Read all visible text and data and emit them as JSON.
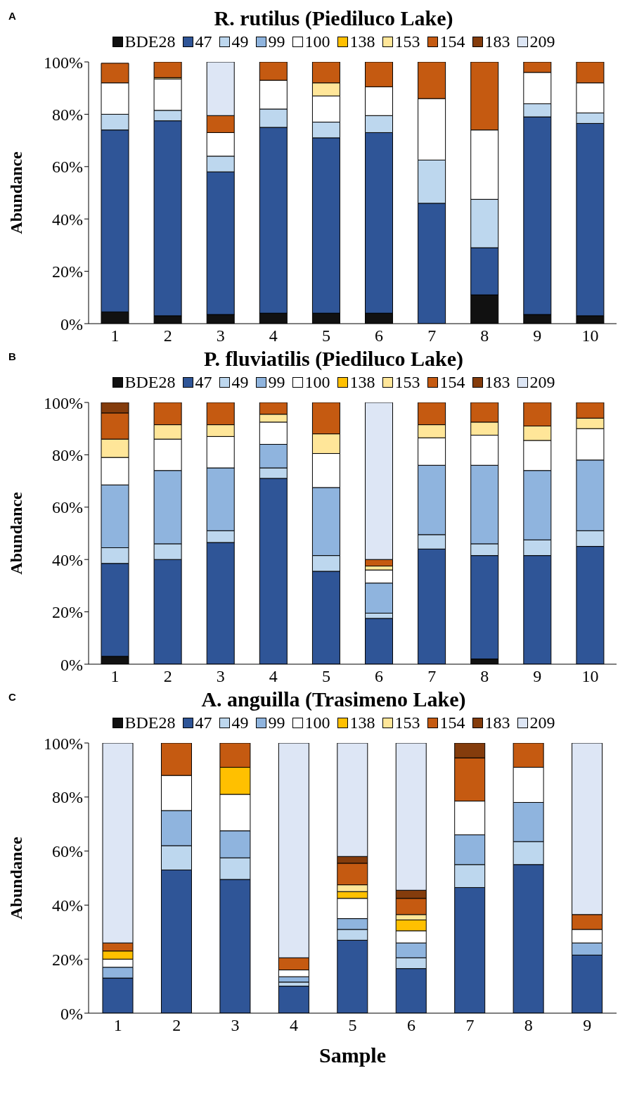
{
  "chart_data": [
    {
      "type": "bar",
      "stacked": true,
      "title": "R. rutilus (Piediluco Lake)",
      "ylabel": "Abundance",
      "annotations": [
        "A"
      ],
      "legend": "top",
      "categories": [
        "1",
        "2",
        "3",
        "4",
        "5",
        "6",
        "7",
        "8",
        "9",
        "10"
      ],
      "ylim": [
        0,
        100
      ],
      "yticks": [
        {
          "value": 0,
          "label": "0%"
        },
        {
          "value": 20,
          "label": "20%"
        },
        {
          "value": 40,
          "label": "40%"
        },
        {
          "value": 60,
          "label": "60%"
        },
        {
          "value": 80,
          "label": "80%"
        },
        {
          "value": 100,
          "label": "100%"
        }
      ],
      "series": [
        {
          "name": "BDE28",
          "color": "#111111",
          "values": [
            4.5,
            3,
            3.5,
            4,
            4,
            4,
            null,
            11,
            3.5,
            3
          ]
        },
        {
          "name": "47",
          "color": "#2f5597",
          "values": [
            69.5,
            74.5,
            54.5,
            71,
            67,
            69,
            46,
            18,
            75.5,
            73.5
          ]
        },
        {
          "name": "49",
          "color": "#bdd7ee",
          "values": [
            6,
            4,
            6,
            7,
            6,
            6.5,
            16.5,
            18.5,
            5,
            4
          ]
        },
        {
          "name": "99",
          "color": "#8fb4de",
          "values": [
            null,
            null,
            null,
            null,
            null,
            null,
            null,
            null,
            null,
            null
          ]
        },
        {
          "name": "100",
          "color": "#ffffff",
          "values": [
            12,
            12,
            9,
            11,
            10,
            11,
            23.5,
            26.5,
            12,
            11.5
          ]
        },
        {
          "name": "138",
          "color": "#ffc000",
          "values": [
            null,
            null,
            null,
            null,
            null,
            null,
            null,
            null,
            null,
            null
          ]
        },
        {
          "name": "153",
          "color": "#ffe699",
          "values": [
            null,
            0.5,
            null,
            null,
            5,
            null,
            null,
            null,
            null,
            null
          ]
        },
        {
          "name": "154",
          "color": "#c55a11",
          "values": [
            7.5,
            6,
            6.5,
            7,
            8,
            9.5,
            14,
            26,
            4,
            8
          ]
        },
        {
          "name": "183",
          "color": "#843c0c",
          "values": [
            null,
            null,
            null,
            null,
            null,
            null,
            null,
            null,
            null,
            null
          ]
        },
        {
          "name": "209",
          "color": "#dde6f5",
          "values": [
            null,
            null,
            20.5,
            null,
            null,
            null,
            null,
            null,
            null,
            null
          ]
        }
      ]
    },
    {
      "type": "bar",
      "stacked": true,
      "title": "P. fluviatilis (Piediluco Lake)",
      "ylabel": "Abundance",
      "annotations": [
        "B"
      ],
      "legend": "top",
      "categories": [
        "1",
        "2",
        "3",
        "4",
        "5",
        "6",
        "7",
        "8",
        "9",
        "10"
      ],
      "ylim": [
        0,
        100
      ],
      "yticks": [
        {
          "value": 0,
          "label": "0%"
        },
        {
          "value": 20,
          "label": "20%"
        },
        {
          "value": 40,
          "label": "40%"
        },
        {
          "value": 60,
          "label": "60%"
        },
        {
          "value": 80,
          "label": "80%"
        },
        {
          "value": 100,
          "label": "100%"
        }
      ],
      "series": [
        {
          "name": "BDE28",
          "color": "#111111",
          "values": [
            3,
            null,
            null,
            null,
            null,
            null,
            null,
            2,
            null,
            null
          ]
        },
        {
          "name": "47",
          "color": "#2f5597",
          "values": [
            35.5,
            40,
            46.5,
            71,
            35.5,
            17.5,
            44,
            39.5,
            41.5,
            45
          ]
        },
        {
          "name": "49",
          "color": "#bdd7ee",
          "values": [
            6,
            6,
            4.5,
            4,
            6,
            2,
            5.5,
            4.5,
            6,
            6
          ]
        },
        {
          "name": "99",
          "color": "#8fb4de",
          "values": [
            24,
            28,
            24,
            9,
            26,
            11.5,
            26.5,
            30,
            26.5,
            27
          ]
        },
        {
          "name": "100",
          "color": "#ffffff",
          "values": [
            10.5,
            12,
            12,
            8.5,
            13,
            5,
            10.5,
            11.5,
            11.5,
            12
          ]
        },
        {
          "name": "138",
          "color": "#ffc000",
          "values": [
            null,
            null,
            null,
            null,
            null,
            null,
            null,
            null,
            null,
            null
          ]
        },
        {
          "name": "153",
          "color": "#ffe699",
          "values": [
            7,
            5.5,
            4.5,
            3,
            7.5,
            1.5,
            5,
            5,
            5.5,
            4
          ]
        },
        {
          "name": "154",
          "color": "#c55a11",
          "values": [
            10,
            8.5,
            8.5,
            4.5,
            12,
            2.5,
            8.5,
            7.5,
            9,
            6
          ]
        },
        {
          "name": "183",
          "color": "#843c0c",
          "values": [
            4,
            null,
            null,
            null,
            null,
            null,
            null,
            null,
            null,
            null
          ]
        },
        {
          "name": "209",
          "color": "#dde6f5",
          "values": [
            null,
            null,
            null,
            null,
            null,
            60,
            null,
            null,
            null,
            null
          ]
        }
      ]
    },
    {
      "type": "bar",
      "stacked": true,
      "title": "A. anguilla (Trasimeno Lake)",
      "xlabel": "Sample",
      "ylabel": "Abundance",
      "annotations": [
        "C"
      ],
      "legend": "top",
      "categories": [
        "1",
        "2",
        "3",
        "4",
        "5",
        "6",
        "7",
        "8",
        "9"
      ],
      "ylim": [
        0,
        100
      ],
      "yticks": [
        {
          "value": 0,
          "label": "0%"
        },
        {
          "value": 20,
          "label": "20%"
        },
        {
          "value": 40,
          "label": "40%"
        },
        {
          "value": 60,
          "label": "60%"
        },
        {
          "value": 80,
          "label": "80%"
        },
        {
          "value": 100,
          "label": "100%"
        }
      ],
      "series": [
        {
          "name": "BDE28",
          "color": "#111111",
          "values": [
            null,
            null,
            null,
            null,
            null,
            null,
            null,
            null,
            null
          ]
        },
        {
          "name": "47",
          "color": "#2f5597",
          "values": [
            13,
            53,
            49.5,
            10,
            27,
            16.5,
            46.5,
            55,
            21.5
          ]
        },
        {
          "name": "49",
          "color": "#bdd7ee",
          "values": [
            null,
            9,
            8,
            1.5,
            4,
            4,
            8.5,
            8.5,
            null
          ]
        },
        {
          "name": "99",
          "color": "#8fb4de",
          "values": [
            4,
            13,
            10,
            2,
            4,
            5.5,
            11,
            14.5,
            4.5
          ]
        },
        {
          "name": "100",
          "color": "#ffffff",
          "values": [
            3,
            13,
            13.5,
            2.5,
            7.5,
            4.5,
            12.5,
            13,
            5
          ]
        },
        {
          "name": "138",
          "color": "#ffc000",
          "values": [
            3,
            null,
            10,
            null,
            2.5,
            4,
            null,
            null,
            null
          ]
        },
        {
          "name": "153",
          "color": "#ffe699",
          "values": [
            null,
            null,
            null,
            null,
            2.5,
            2,
            null,
            null,
            null
          ]
        },
        {
          "name": "154",
          "color": "#c55a11",
          "values": [
            3,
            12,
            9,
            4.5,
            8,
            6,
            16,
            9,
            5.5
          ]
        },
        {
          "name": "183",
          "color": "#843c0c",
          "values": [
            null,
            null,
            null,
            null,
            2.5,
            3,
            5.5,
            null,
            null
          ]
        },
        {
          "name": "209",
          "color": "#dde6f5",
          "values": [
            74,
            null,
            null,
            79.5,
            42,
            54.5,
            null,
            null,
            63.5
          ]
        }
      ]
    }
  ]
}
